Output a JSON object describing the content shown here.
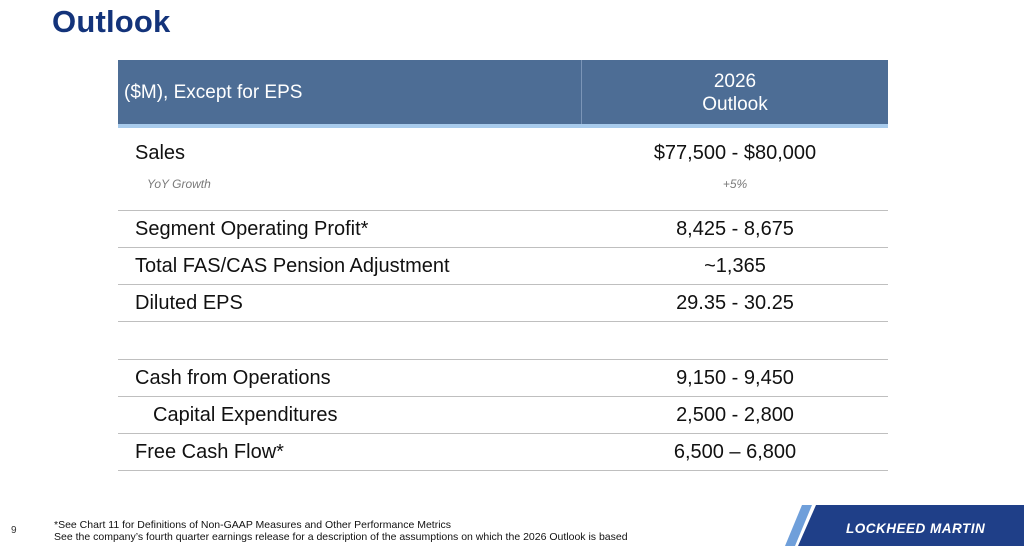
{
  "page": {
    "title": "Outlook",
    "page_number": "9"
  },
  "table": {
    "header_left": "($M), Except for EPS",
    "header_right_line1": "2026",
    "header_right_line2": "Outlook",
    "rows": [
      {
        "label": "Sales",
        "value": "$77,500 - $80,000",
        "sub_label": "YoY Growth",
        "sub_value": "+5%"
      },
      {
        "label": "Segment Operating Profit*",
        "value": "8,425 - 8,675"
      },
      {
        "label": "Total FAS/CAS Pension Adjustment",
        "value": "~1,365"
      },
      {
        "label": "Diluted EPS",
        "value": "29.35 - 30.25"
      },
      {
        "label": "",
        "value": ""
      },
      {
        "label": "Cash from Operations",
        "value": "9,150 - 9,450"
      },
      {
        "label": "Capital Expenditures",
        "value": "2,500 - 2,800"
      },
      {
        "label": "Free Cash Flow*",
        "value": "6,500 – 6,800"
      }
    ]
  },
  "footer": {
    "note_1": "*See Chart 11 for Definitions of Non-GAAP Measures and Other Performance Metrics",
    "note_2": "See the company’s fourth quarter earnings release for a description of the assumptions on which the 2026 Outlook is based",
    "brand": "LOCKHEED MARTIN"
  },
  "colors": {
    "title": "#13337a",
    "table_header": "#4d6d95",
    "header_accent": "#a8cbec",
    "brand_blue": "#1f3f88",
    "brand_light": "#6f9fda"
  }
}
